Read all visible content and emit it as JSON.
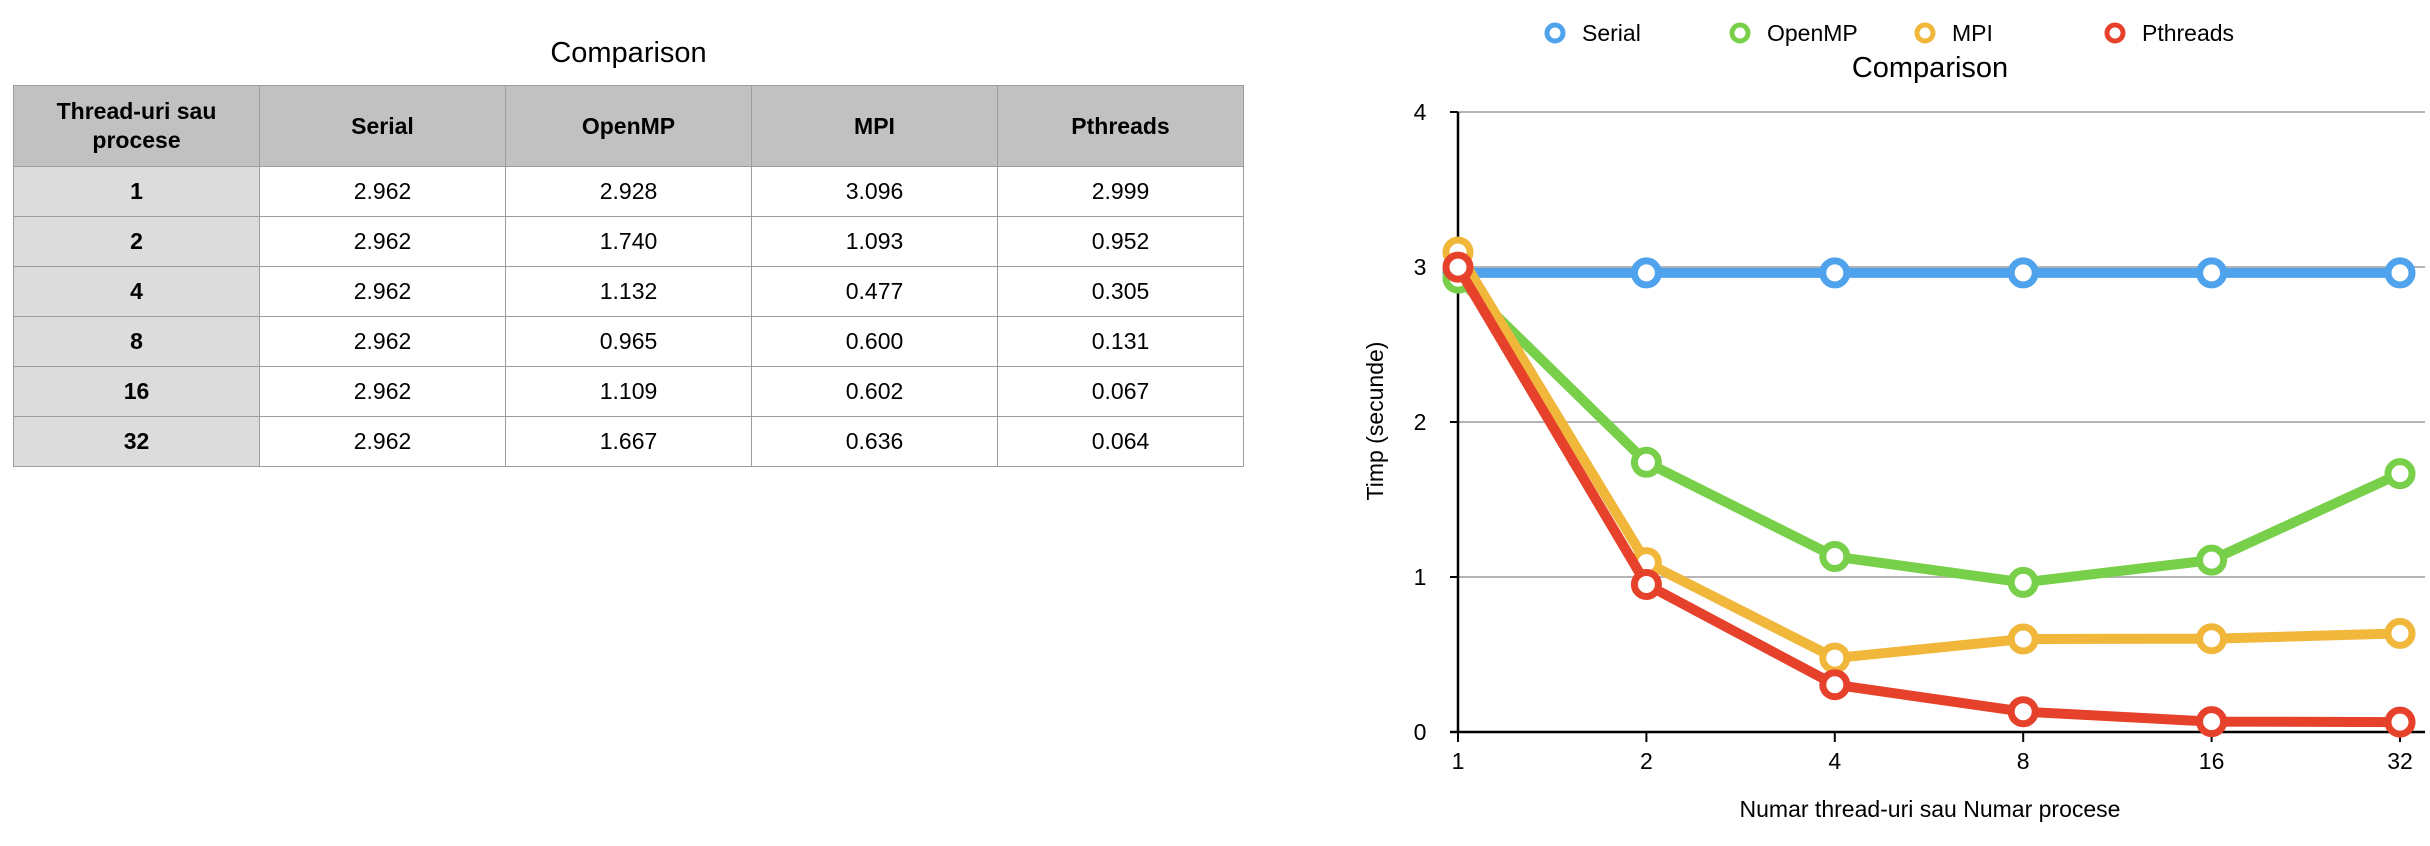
{
  "colors": {
    "Serial": "#4fa2ec",
    "OpenMP": "#78d04a",
    "MPI": "#f0b73b",
    "Pthreads": "#e6412b",
    "header_bg": "#c0c1c0",
    "rowhead_bg": "#dcdcdc",
    "grid": "#b5b5b5"
  },
  "table": {
    "title": "Comparison",
    "columns": [
      "Thread-uri sau procese",
      "Serial",
      "OpenMP",
      "MPI",
      "Pthreads"
    ],
    "rows": [
      [
        "1",
        "2.962",
        "2.928",
        "3.096",
        "2.999"
      ],
      [
        "2",
        "2.962",
        "1.740",
        "1.093",
        "0.952"
      ],
      [
        "4",
        "2.962",
        "1.132",
        "0.477",
        "0.305"
      ],
      [
        "8",
        "2.962",
        "0.965",
        "0.600",
        "0.131"
      ],
      [
        "16",
        "2.962",
        "1.109",
        "0.602",
        "0.067"
      ],
      [
        "32",
        "2.962",
        "1.667",
        "0.636",
        "0.064"
      ]
    ]
  },
  "chart_data": {
    "type": "line",
    "title": "Comparison",
    "xlabel": "Numar thread-uri sau Numar procese",
    "ylabel": "Timp (secunde)",
    "categories": [
      "1",
      "2",
      "4",
      "8",
      "16",
      "32"
    ],
    "ylim": [
      0,
      4
    ],
    "yticks": [
      "0",
      "1",
      "2",
      "3",
      "4"
    ],
    "grid": true,
    "legend_position": "top",
    "series": [
      {
        "name": "Serial",
        "values": [
          2.962,
          2.962,
          2.962,
          2.962,
          2.962,
          2.962
        ]
      },
      {
        "name": "OpenMP",
        "values": [
          2.928,
          1.74,
          1.132,
          0.965,
          1.109,
          1.667
        ]
      },
      {
        "name": "MPI",
        "values": [
          3.096,
          1.093,
          0.477,
          0.6,
          0.602,
          0.636
        ]
      },
      {
        "name": "Pthreads",
        "values": [
          2.999,
          0.952,
          0.305,
          0.131,
          0.067,
          0.064
        ]
      }
    ]
  }
}
